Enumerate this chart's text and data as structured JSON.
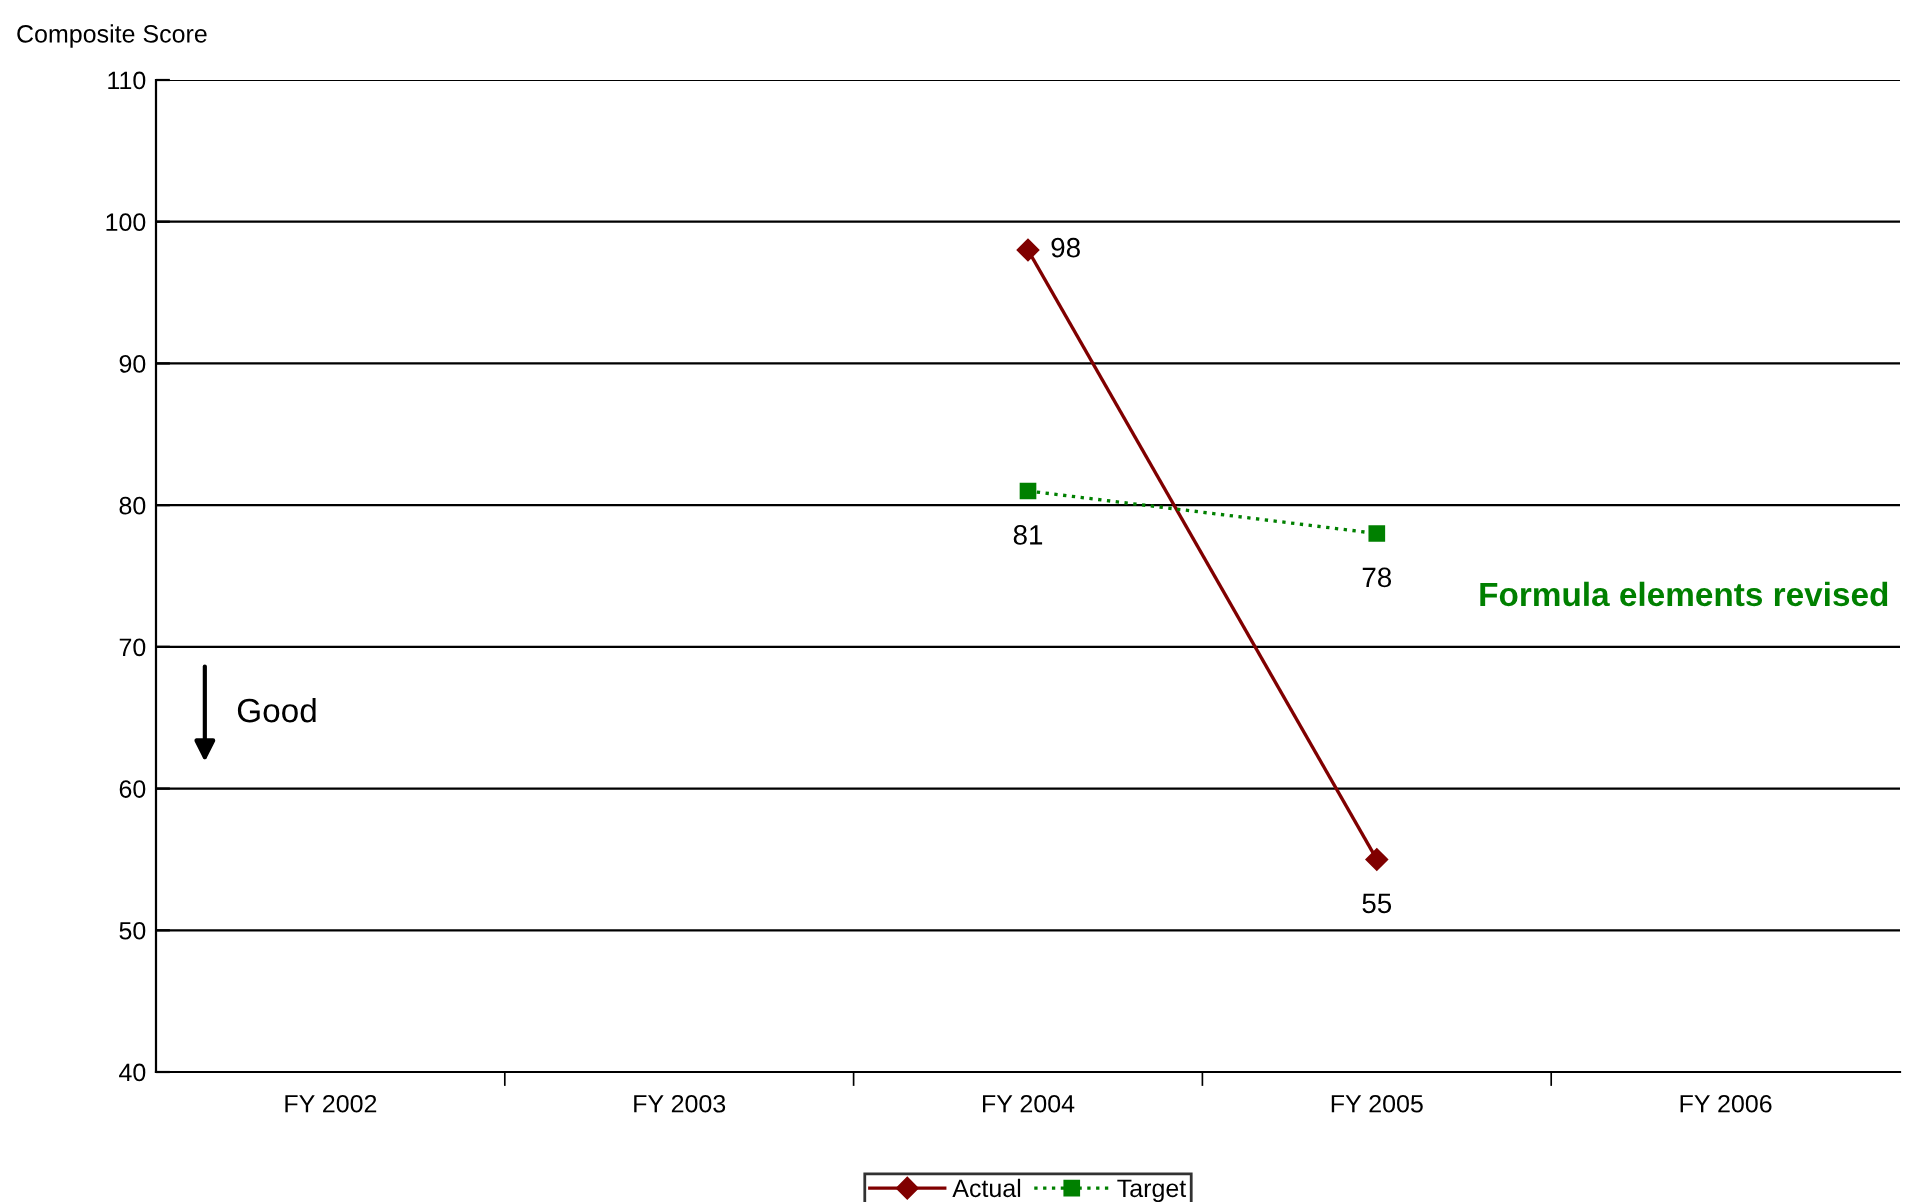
{
  "chart_data": {
    "type": "line",
    "ylabel": "Composite Score",
    "categories": [
      "FY 2002",
      "FY 2003",
      "FY 2004",
      "FY 2005",
      "FY 2006"
    ],
    "series": [
      {
        "name": "Actual",
        "color": "#800000",
        "values": [
          null,
          null,
          98,
          55,
          null
        ],
        "marker": "diamond",
        "line_style": "solid"
      },
      {
        "name": "Target",
        "color": "#008000",
        "values": [
          null,
          null,
          81,
          78,
          null
        ],
        "marker": "square",
        "line_style": "dotted"
      }
    ],
    "ylim": [
      40,
      110
    ],
    "yticks": [
      40,
      50,
      60,
      70,
      80,
      90,
      100,
      110
    ],
    "grid": "y",
    "legend": "bottom",
    "data_labels": true,
    "annotations": [
      "Formula elements revised",
      "Good"
    ]
  }
}
